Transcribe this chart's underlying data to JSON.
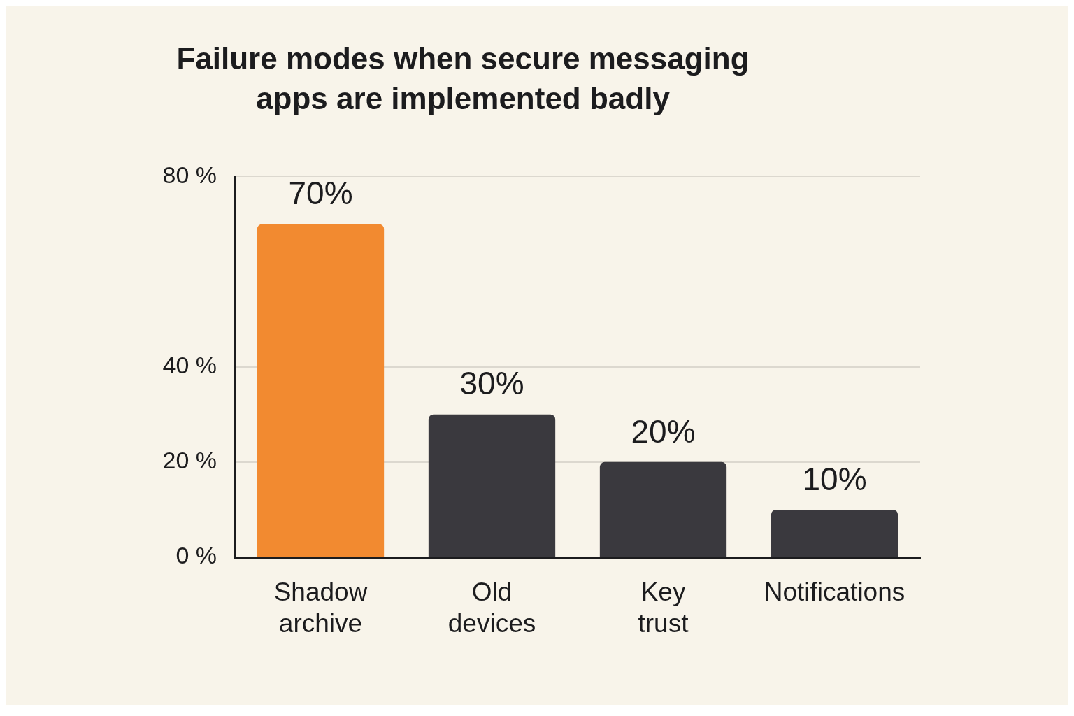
{
  "chart_data": {
    "type": "bar",
    "title": "Failure modes when secure messaging apps are implemented badly",
    "categories": [
      "Shadow archive",
      "Old devices",
      "Key trust",
      "Notifications"
    ],
    "values": [
      70,
      30,
      20,
      10
    ],
    "colors": [
      "#f28a30",
      "#3a393e",
      "#3a393e",
      "#3a393e"
    ],
    "value_labels": [
      "70%",
      "30%",
      "20%",
      "10%"
    ],
    "ylim": [
      0,
      80
    ],
    "yticks": [
      {
        "value": 0,
        "label": "0 %"
      },
      {
        "value": 20,
        "label": "20 %"
      },
      {
        "value": 40,
        "label": "40 %"
      },
      {
        "value": 80,
        "label": "80 %"
      }
    ],
    "grid": "y"
  }
}
